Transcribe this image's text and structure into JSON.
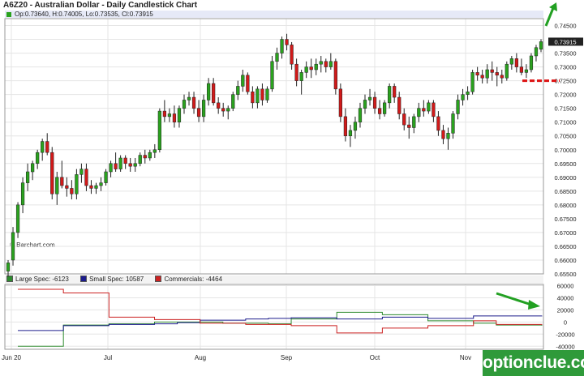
{
  "header": {
    "title": "A6Z20 - Australian Dollar - Daily Candlestick Chart",
    "ohlc": "Op:0.73640, H:0.74005, Lo:0.73535, Cl:0.73915",
    "last_price_label": "0.73915"
  },
  "credit": "© Barchart.com",
  "watermark": "optionclue.com",
  "colors": {
    "up": "#2aa21e",
    "down": "#d11a1a",
    "large_spec": "#2e8b2e",
    "small_spec": "#1c1c8c",
    "commercials": "#cc2222",
    "support": "#dd1111",
    "arrow": "#22a022"
  },
  "chart_data": [
    {
      "type": "candlestick",
      "series": [
        {
          "name": "A6Z20",
          "values": [
            {
              "o": 0.656,
              "h": 0.66,
              "l": 0.654,
              "c": 0.659
            },
            {
              "o": 0.66,
              "h": 0.672,
              "l": 0.658,
              "c": 0.67
            },
            {
              "o": 0.67,
              "h": 0.681,
              "l": 0.668,
              "c": 0.68
            },
            {
              "o": 0.68,
              "h": 0.69,
              "l": 0.677,
              "c": 0.688
            },
            {
              "o": 0.688,
              "h": 0.695,
              "l": 0.685,
              "c": 0.692
            },
            {
              "o": 0.692,
              "h": 0.696,
              "l": 0.689,
              "c": 0.695
            },
            {
              "o": 0.695,
              "h": 0.7,
              "l": 0.693,
              "c": 0.699
            },
            {
              "o": 0.699,
              "h": 0.704,
              "l": 0.696,
              "c": 0.703
            },
            {
              "o": 0.703,
              "h": 0.706,
              "l": 0.698,
              "c": 0.699
            },
            {
              "o": 0.699,
              "h": 0.701,
              "l": 0.682,
              "c": 0.684
            },
            {
              "o": 0.684,
              "h": 0.692,
              "l": 0.68,
              "c": 0.69
            },
            {
              "o": 0.69,
              "h": 0.696,
              "l": 0.686,
              "c": 0.687
            },
            {
              "o": 0.687,
              "h": 0.69,
              "l": 0.683,
              "c": 0.686
            },
            {
              "o": 0.686,
              "h": 0.689,
              "l": 0.682,
              "c": 0.684
            },
            {
              "o": 0.684,
              "h": 0.693,
              "l": 0.682,
              "c": 0.691
            },
            {
              "o": 0.691,
              "h": 0.695,
              "l": 0.688,
              "c": 0.693
            },
            {
              "o": 0.693,
              "h": 0.695,
              "l": 0.685,
              "c": 0.687
            },
            {
              "o": 0.687,
              "h": 0.689,
              "l": 0.684,
              "c": 0.686
            },
            {
              "o": 0.686,
              "h": 0.688,
              "l": 0.684,
              "c": 0.687
            },
            {
              "o": 0.687,
              "h": 0.69,
              "l": 0.685,
              "c": 0.688
            },
            {
              "o": 0.688,
              "h": 0.693,
              "l": 0.687,
              "c": 0.692
            },
            {
              "o": 0.692,
              "h": 0.696,
              "l": 0.69,
              "c": 0.695
            },
            {
              "o": 0.695,
              "h": 0.699,
              "l": 0.692,
              "c": 0.693
            },
            {
              "o": 0.693,
              "h": 0.698,
              "l": 0.692,
              "c": 0.697
            },
            {
              "o": 0.697,
              "h": 0.698,
              "l": 0.693,
              "c": 0.695
            },
            {
              "o": 0.695,
              "h": 0.697,
              "l": 0.692,
              "c": 0.694
            },
            {
              "o": 0.694,
              "h": 0.697,
              "l": 0.692,
              "c": 0.695
            },
            {
              "o": 0.695,
              "h": 0.699,
              "l": 0.694,
              "c": 0.698
            },
            {
              "o": 0.698,
              "h": 0.7,
              "l": 0.695,
              "c": 0.697
            },
            {
              "o": 0.697,
              "h": 0.7,
              "l": 0.696,
              "c": 0.699
            },
            {
              "o": 0.699,
              "h": 0.702,
              "l": 0.697,
              "c": 0.7
            },
            {
              "o": 0.7,
              "h": 0.715,
              "l": 0.699,
              "c": 0.714
            },
            {
              "o": 0.714,
              "h": 0.718,
              "l": 0.71,
              "c": 0.712
            },
            {
              "o": 0.712,
              "h": 0.715,
              "l": 0.71,
              "c": 0.713
            },
            {
              "o": 0.713,
              "h": 0.716,
              "l": 0.708,
              "c": 0.71
            },
            {
              "o": 0.71,
              "h": 0.716,
              "l": 0.708,
              "c": 0.715
            },
            {
              "o": 0.715,
              "h": 0.72,
              "l": 0.713,
              "c": 0.718
            },
            {
              "o": 0.718,
              "h": 0.721,
              "l": 0.716,
              "c": 0.719
            },
            {
              "o": 0.719,
              "h": 0.721,
              "l": 0.713,
              "c": 0.715
            },
            {
              "o": 0.715,
              "h": 0.718,
              "l": 0.71,
              "c": 0.712
            },
            {
              "o": 0.712,
              "h": 0.72,
              "l": 0.71,
              "c": 0.718
            },
            {
              "o": 0.718,
              "h": 0.726,
              "l": 0.716,
              "c": 0.724
            },
            {
              "o": 0.724,
              "h": 0.726,
              "l": 0.716,
              "c": 0.717
            },
            {
              "o": 0.717,
              "h": 0.719,
              "l": 0.713,
              "c": 0.715
            },
            {
              "o": 0.715,
              "h": 0.717,
              "l": 0.712,
              "c": 0.714
            },
            {
              "o": 0.714,
              "h": 0.716,
              "l": 0.711,
              "c": 0.715
            },
            {
              "o": 0.715,
              "h": 0.721,
              "l": 0.714,
              "c": 0.72
            },
            {
              "o": 0.72,
              "h": 0.725,
              "l": 0.718,
              "c": 0.723
            },
            {
              "o": 0.723,
              "h": 0.729,
              "l": 0.721,
              "c": 0.727
            },
            {
              "o": 0.727,
              "h": 0.728,
              "l": 0.72,
              "c": 0.721
            },
            {
              "o": 0.721,
              "h": 0.723,
              "l": 0.715,
              "c": 0.717
            },
            {
              "o": 0.717,
              "h": 0.723,
              "l": 0.715,
              "c": 0.722
            },
            {
              "o": 0.722,
              "h": 0.724,
              "l": 0.716,
              "c": 0.718
            },
            {
              "o": 0.718,
              "h": 0.723,
              "l": 0.717,
              "c": 0.722
            },
            {
              "o": 0.722,
              "h": 0.734,
              "l": 0.721,
              "c": 0.732
            },
            {
              "o": 0.732,
              "h": 0.737,
              "l": 0.729,
              "c": 0.735
            },
            {
              "o": 0.735,
              "h": 0.741,
              "l": 0.733,
              "c": 0.74
            },
            {
              "o": 0.74,
              "h": 0.742,
              "l": 0.736,
              "c": 0.738
            },
            {
              "o": 0.738,
              "h": 0.739,
              "l": 0.729,
              "c": 0.731
            },
            {
              "o": 0.731,
              "h": 0.733,
              "l": 0.723,
              "c": 0.725
            },
            {
              "o": 0.725,
              "h": 0.729,
              "l": 0.72,
              "c": 0.728
            },
            {
              "o": 0.728,
              "h": 0.732,
              "l": 0.726,
              "c": 0.73
            },
            {
              "o": 0.73,
              "h": 0.733,
              "l": 0.726,
              "c": 0.729
            },
            {
              "o": 0.729,
              "h": 0.733,
              "l": 0.727,
              "c": 0.731
            },
            {
              "o": 0.731,
              "h": 0.734,
              "l": 0.728,
              "c": 0.732
            },
            {
              "o": 0.732,
              "h": 0.733,
              "l": 0.728,
              "c": 0.73
            },
            {
              "o": 0.73,
              "h": 0.735,
              "l": 0.729,
              "c": 0.732
            },
            {
              "o": 0.732,
              "h": 0.733,
              "l": 0.72,
              "c": 0.722
            },
            {
              "o": 0.722,
              "h": 0.724,
              "l": 0.71,
              "c": 0.712
            },
            {
              "o": 0.712,
              "h": 0.715,
              "l": 0.703,
              "c": 0.705
            },
            {
              "o": 0.705,
              "h": 0.709,
              "l": 0.701,
              "c": 0.707
            },
            {
              "o": 0.707,
              "h": 0.712,
              "l": 0.704,
              "c": 0.71
            },
            {
              "o": 0.71,
              "h": 0.717,
              "l": 0.708,
              "c": 0.715
            },
            {
              "o": 0.715,
              "h": 0.72,
              "l": 0.713,
              "c": 0.718
            },
            {
              "o": 0.718,
              "h": 0.722,
              "l": 0.716,
              "c": 0.719
            },
            {
              "o": 0.719,
              "h": 0.721,
              "l": 0.713,
              "c": 0.715
            },
            {
              "o": 0.715,
              "h": 0.718,
              "l": 0.711,
              "c": 0.713
            },
            {
              "o": 0.713,
              "h": 0.718,
              "l": 0.712,
              "c": 0.717
            },
            {
              "o": 0.717,
              "h": 0.724,
              "l": 0.715,
              "c": 0.723
            },
            {
              "o": 0.723,
              "h": 0.724,
              "l": 0.717,
              "c": 0.719
            },
            {
              "o": 0.719,
              "h": 0.721,
              "l": 0.711,
              "c": 0.713
            },
            {
              "o": 0.713,
              "h": 0.715,
              "l": 0.707,
              "c": 0.709
            },
            {
              "o": 0.709,
              "h": 0.712,
              "l": 0.704,
              "c": 0.708
            },
            {
              "o": 0.708,
              "h": 0.713,
              "l": 0.706,
              "c": 0.712
            },
            {
              "o": 0.712,
              "h": 0.717,
              "l": 0.71,
              "c": 0.715
            },
            {
              "o": 0.715,
              "h": 0.718,
              "l": 0.712,
              "c": 0.714
            },
            {
              "o": 0.714,
              "h": 0.718,
              "l": 0.713,
              "c": 0.717
            },
            {
              "o": 0.717,
              "h": 0.718,
              "l": 0.71,
              "c": 0.712
            },
            {
              "o": 0.712,
              "h": 0.714,
              "l": 0.705,
              "c": 0.707
            },
            {
              "o": 0.707,
              "h": 0.709,
              "l": 0.702,
              "c": 0.704
            },
            {
              "o": 0.704,
              "h": 0.708,
              "l": 0.7,
              "c": 0.706
            },
            {
              "o": 0.706,
              "h": 0.714,
              "l": 0.704,
              "c": 0.713
            },
            {
              "o": 0.713,
              "h": 0.72,
              "l": 0.711,
              "c": 0.718
            },
            {
              "o": 0.718,
              "h": 0.722,
              "l": 0.716,
              "c": 0.72
            },
            {
              "o": 0.72,
              "h": 0.723,
              "l": 0.718,
              "c": 0.721
            },
            {
              "o": 0.721,
              "h": 0.729,
              "l": 0.72,
              "c": 0.728
            },
            {
              "o": 0.728,
              "h": 0.73,
              "l": 0.725,
              "c": 0.727
            },
            {
              "o": 0.727,
              "h": 0.729,
              "l": 0.724,
              "c": 0.726
            },
            {
              "o": 0.726,
              "h": 0.731,
              "l": 0.724,
              "c": 0.729
            },
            {
              "o": 0.729,
              "h": 0.732,
              "l": 0.725,
              "c": 0.728
            },
            {
              "o": 0.728,
              "h": 0.73,
              "l": 0.723,
              "c": 0.727
            },
            {
              "o": 0.727,
              "h": 0.729,
              "l": 0.724,
              "c": 0.726
            },
            {
              "o": 0.726,
              "h": 0.732,
              "l": 0.725,
              "c": 0.731
            },
            {
              "o": 0.731,
              "h": 0.734,
              "l": 0.729,
              "c": 0.733
            },
            {
              "o": 0.733,
              "h": 0.735,
              "l": 0.728,
              "c": 0.73
            },
            {
              "o": 0.73,
              "h": 0.733,
              "l": 0.727,
              "c": 0.728
            },
            {
              "o": 0.728,
              "h": 0.731,
              "l": 0.726,
              "c": 0.729
            },
            {
              "o": 0.729,
              "h": 0.735,
              "l": 0.728,
              "c": 0.734
            },
            {
              "o": 0.734,
              "h": 0.738,
              "l": 0.732,
              "c": 0.737
            },
            {
              "o": 0.7364,
              "h": 0.74005,
              "l": 0.73535,
              "c": 0.73915
            }
          ]
        }
      ],
      "y_ticks": [
        "0.74500",
        "0.74000",
        "0.73500",
        "0.73000",
        "0.72500",
        "0.72000",
        "0.71500",
        "0.71000",
        "0.70500",
        "0.70000",
        "0.69500",
        "0.69000",
        "0.68500",
        "0.68000",
        "0.67500",
        "0.67000",
        "0.66500",
        "0.66000",
        "0.65500"
      ],
      "ylim": [
        0.655,
        0.7475
      ],
      "support_level": 0.725
    },
    {
      "type": "line",
      "title": "",
      "series": [
        {
          "name": "Large Spec: -6123",
          "values": [
            -40000,
            -40000,
            -5000,
            -5000,
            -3000,
            -3000,
            0,
            0,
            0,
            -2000,
            -2000,
            -3000,
            5000,
            5000,
            16000,
            16000,
            12000,
            12000,
            2000,
            2000,
            -2000,
            -5000,
            -5000,
            -6123
          ]
        },
        {
          "name": "Small Spec: 10587",
          "values": [
            -14000,
            -14000,
            -6000,
            -6000,
            -4000,
            -4000,
            -3000,
            -1000,
            3000,
            3000,
            5000,
            6000,
            7000,
            7000,
            5000,
            5000,
            8000,
            8000,
            6000,
            6000,
            10000,
            10000,
            10000,
            10587
          ]
        },
        {
          "name": "Commercials: -4464",
          "values": [
            54000,
            54000,
            48000,
            48000,
            8000,
            8000,
            4000,
            4000,
            -2000,
            -2000,
            -4000,
            -4000,
            -6000,
            -6000,
            -18000,
            -18000,
            -10000,
            -10000,
            -6000,
            -6000,
            2000,
            -4000,
            -4000,
            -4464
          ]
        }
      ],
      "y_ticks": [
        "60000",
        "40000",
        "20000",
        "0",
        "-20000",
        "-40000"
      ],
      "ylim": [
        -45000,
        62000
      ]
    }
  ],
  "x_axis": {
    "labels": [
      "Jun 20",
      "Jul",
      "Aug",
      "Sep",
      "Oct",
      "Nov"
    ]
  }
}
